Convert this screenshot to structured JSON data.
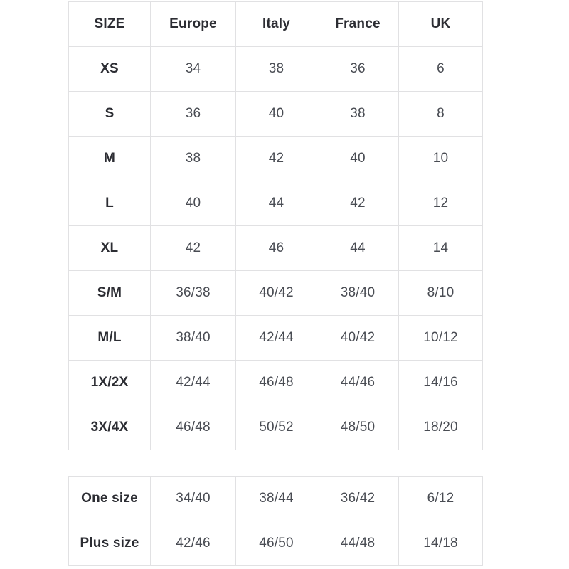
{
  "colors": {
    "page_background": "#ffffff",
    "border": "#e1e1e3",
    "header_text": "#2c2d33",
    "value_text": "#494c53"
  },
  "tables": [
    {
      "name": "size-conversion",
      "columns": [
        "SIZE",
        "Europe",
        "Italy",
        "France",
        "UK"
      ],
      "rows": [
        [
          "XS",
          "34",
          "38",
          "36",
          "6"
        ],
        [
          "S",
          "36",
          "40",
          "38",
          "8"
        ],
        [
          "M",
          "38",
          "42",
          "40",
          "10"
        ],
        [
          "L",
          "40",
          "44",
          "42",
          "12"
        ],
        [
          "XL",
          "42",
          "46",
          "44",
          "14"
        ],
        [
          "S/M",
          "36/38",
          "40/42",
          "38/40",
          "8/10"
        ],
        [
          "M/L",
          "38/40",
          "42/44",
          "40/42",
          "10/12"
        ],
        [
          "1X/2X",
          "42/44",
          "46/48",
          "44/46",
          "14/16"
        ],
        [
          "3X/4X",
          "46/48",
          "50/52",
          "48/50",
          "18/20"
        ]
      ]
    },
    {
      "name": "special-sizes",
      "rows": [
        [
          "One size",
          "34/40",
          "38/44",
          "36/42",
          "6/12"
        ],
        [
          "Plus size",
          "42/46",
          "46/50",
          "44/48",
          "14/18"
        ]
      ]
    }
  ]
}
